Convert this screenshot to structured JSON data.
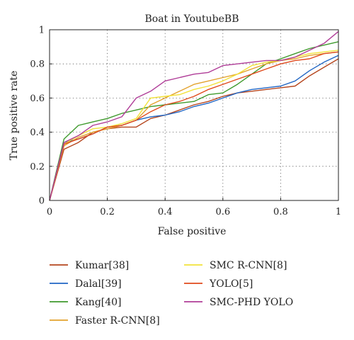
{
  "chart_data": {
    "type": "line",
    "title": "Boat in YoutubeBB",
    "xlabel": "False positive",
    "ylabel": "True positive rate",
    "xlim": [
      0,
      1
    ],
    "ylim": [
      0,
      1
    ],
    "xticks": [
      0,
      0.2,
      0.4,
      0.6,
      0.8,
      1
    ],
    "xtick_labels": [
      "0",
      "0.2",
      "0.4",
      "0.6",
      "0.8",
      "1"
    ],
    "yticks": [
      0,
      0.2,
      0.4,
      0.6,
      0.8,
      1
    ],
    "ytick_labels": [
      "0",
      "0.2",
      "0.4",
      "0.6",
      "0.8",
      "1"
    ],
    "grid": true,
    "legend_position": "below",
    "series": [
      {
        "name": "Kumar[38]",
        "color": "#b5461e",
        "x": [
          0,
          0.05,
          0.1,
          0.15,
          0.2,
          0.25,
          0.3,
          0.35,
          0.4,
          0.45,
          0.5,
          0.55,
          0.6,
          0.65,
          0.7,
          0.75,
          0.8,
          0.85,
          0.9,
          0.95,
          1
        ],
        "y": [
          0,
          0.3,
          0.34,
          0.4,
          0.42,
          0.43,
          0.43,
          0.48,
          0.5,
          0.53,
          0.56,
          0.58,
          0.61,
          0.63,
          0.64,
          0.65,
          0.66,
          0.67,
          0.73,
          0.78,
          0.83
        ]
      },
      {
        "name": "Dalal[39]",
        "color": "#2166c4",
        "x": [
          0,
          0.05,
          0.1,
          0.15,
          0.2,
          0.25,
          0.3,
          0.35,
          0.4,
          0.45,
          0.5,
          0.55,
          0.6,
          0.65,
          0.7,
          0.75,
          0.8,
          0.85,
          0.9,
          0.95,
          1
        ],
        "y": [
          0,
          0.34,
          0.36,
          0.39,
          0.43,
          0.44,
          0.47,
          0.49,
          0.5,
          0.52,
          0.55,
          0.57,
          0.6,
          0.63,
          0.65,
          0.66,
          0.67,
          0.7,
          0.76,
          0.81,
          0.85
        ]
      },
      {
        "name": "Kang[40]",
        "color": "#3f9a2d",
        "x": [
          0,
          0.05,
          0.1,
          0.15,
          0.2,
          0.25,
          0.3,
          0.35,
          0.4,
          0.45,
          0.5,
          0.55,
          0.6,
          0.65,
          0.7,
          0.75,
          0.8,
          0.85,
          0.9,
          0.95,
          1
        ],
        "y": [
          0,
          0.36,
          0.44,
          0.46,
          0.48,
          0.51,
          0.53,
          0.55,
          0.56,
          0.57,
          0.58,
          0.62,
          0.63,
          0.68,
          0.74,
          0.8,
          0.83,
          0.86,
          0.89,
          0.91,
          0.93
        ]
      },
      {
        "name": "Faster R-CNN[8]",
        "color": "#e3a22d",
        "x": [
          0,
          0.05,
          0.1,
          0.15,
          0.2,
          0.25,
          0.3,
          0.35,
          0.4,
          0.45,
          0.5,
          0.55,
          0.6,
          0.65,
          0.7,
          0.75,
          0.8,
          0.85,
          0.9,
          0.95,
          1
        ],
        "y": [
          0,
          0.32,
          0.37,
          0.4,
          0.42,
          0.44,
          0.47,
          0.56,
          0.6,
          0.64,
          0.68,
          0.7,
          0.72,
          0.74,
          0.77,
          0.8,
          0.82,
          0.83,
          0.85,
          0.86,
          0.87
        ]
      },
      {
        "name": "SMC R-CNN[8]",
        "color": "#f2e23a",
        "x": [
          0,
          0.05,
          0.1,
          0.15,
          0.2,
          0.25,
          0.3,
          0.35,
          0.4,
          0.45,
          0.5,
          0.55,
          0.6,
          0.65,
          0.7,
          0.75,
          0.8,
          0.85,
          0.9,
          0.95,
          1
        ],
        "y": [
          0,
          0.33,
          0.38,
          0.42,
          0.43,
          0.45,
          0.48,
          0.6,
          0.61,
          0.62,
          0.65,
          0.67,
          0.7,
          0.74,
          0.79,
          0.81,
          0.82,
          0.84,
          0.86,
          0.87,
          0.88
        ]
      },
      {
        "name": "YOLO[5]",
        "color": "#e04a1c",
        "x": [
          0,
          0.05,
          0.1,
          0.15,
          0.2,
          0.25,
          0.3,
          0.35,
          0.4,
          0.45,
          0.5,
          0.55,
          0.6,
          0.65,
          0.7,
          0.75,
          0.8,
          0.85,
          0.9,
          0.95,
          1
        ],
        "y": [
          0,
          0.33,
          0.36,
          0.39,
          0.43,
          0.44,
          0.47,
          0.52,
          0.56,
          0.58,
          0.61,
          0.65,
          0.68,
          0.71,
          0.74,
          0.77,
          0.8,
          0.82,
          0.83,
          0.86,
          0.87
        ]
      },
      {
        "name": "SMC-PHD YOLO",
        "color": "#b03d98",
        "x": [
          0,
          0.05,
          0.1,
          0.15,
          0.2,
          0.25,
          0.3,
          0.35,
          0.4,
          0.45,
          0.5,
          0.55,
          0.6,
          0.65,
          0.7,
          0.75,
          0.8,
          0.85,
          0.9,
          0.95,
          1
        ],
        "y": [
          0,
          0.34,
          0.38,
          0.44,
          0.46,
          0.49,
          0.6,
          0.64,
          0.7,
          0.72,
          0.74,
          0.75,
          0.79,
          0.8,
          0.81,
          0.82,
          0.82,
          0.84,
          0.88,
          0.92,
          0.99
        ]
      }
    ]
  }
}
